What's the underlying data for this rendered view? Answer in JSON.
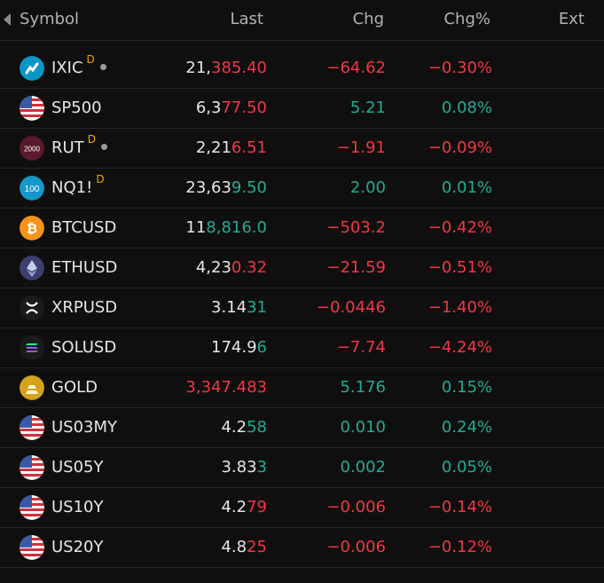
{
  "header": {
    "symbol": "Symbol",
    "last": "Last",
    "chg": "Chg",
    "chgp": "Chg%",
    "ext": "Ext"
  },
  "colors": {
    "red": "#f23645",
    "green": "#22ab94",
    "neutral": "#e6e6e6",
    "flag_d": "#f7a600"
  },
  "rows": [
    {
      "symbol": "IXIC",
      "flag": "D",
      "dot": true,
      "icon": "nasdaq-icon",
      "last_a": "21,",
      "last_b": "385.40",
      "last_b_color": "red",
      "chg": "−64.62",
      "chgp": "−0.30%",
      "dir": "red"
    },
    {
      "symbol": "SP500",
      "flag": "",
      "dot": false,
      "icon": "us-flag-icon",
      "last_a": "6,3",
      "last_b": "77.50",
      "last_b_color": "red",
      "chg": "5.21",
      "chgp": "0.08%",
      "dir": "green"
    },
    {
      "symbol": "RUT",
      "flag": "D",
      "dot": true,
      "icon": "russell-2000-icon",
      "icon_text": "2000",
      "last_a": "2,21",
      "last_b": "6.51",
      "last_b_color": "red",
      "chg": "−1.91",
      "chgp": "−0.09%",
      "dir": "red"
    },
    {
      "symbol": "NQ1!",
      "flag": "D",
      "dot": false,
      "icon": "nasdaq-100-icon",
      "icon_text": "100",
      "last_a": "23,63",
      "last_b": "9.50",
      "last_b_color": "green",
      "chg": "2.00",
      "chgp": "0.01%",
      "dir": "green"
    },
    {
      "symbol": "BTCUSD",
      "flag": "",
      "dot": false,
      "icon": "bitcoin-icon",
      "last_a": "11",
      "last_b": "8,816.0",
      "last_b_color": "green",
      "chg": "−503.2",
      "chgp": "−0.42%",
      "dir": "red"
    },
    {
      "symbol": "ETHUSD",
      "flag": "",
      "dot": false,
      "icon": "ethereum-icon",
      "last_a": "4,23",
      "last_b": "0.32",
      "last_b_color": "red",
      "chg": "−21.59",
      "chgp": "−0.51%",
      "dir": "red"
    },
    {
      "symbol": "XRPUSD",
      "flag": "",
      "dot": false,
      "icon": "xrp-icon",
      "last_a": "3.14",
      "last_b": "31",
      "last_b_color": "green",
      "chg": "−0.0446",
      "chgp": "−1.40%",
      "dir": "red"
    },
    {
      "symbol": "SOLUSD",
      "flag": "",
      "dot": false,
      "icon": "solana-icon",
      "last_a": "174.9",
      "last_b": "6",
      "last_b_color": "green",
      "chg": "−7.74",
      "chgp": "−4.24%",
      "dir": "red"
    },
    {
      "symbol": "GOLD",
      "flag": "",
      "dot": false,
      "icon": "gold-bars-icon",
      "last_a": "",
      "last_b": "3,347.483",
      "last_b_color": "red",
      "chg": "5.176",
      "chgp": "0.15%",
      "dir": "green"
    },
    {
      "symbol": "US03MY",
      "flag": "",
      "dot": false,
      "icon": "us-flag-icon",
      "last_a": "4.2",
      "last_b": "58",
      "last_b_color": "green",
      "chg": "0.010",
      "chgp": "0.24%",
      "dir": "green"
    },
    {
      "symbol": "US05Y",
      "flag": "",
      "dot": false,
      "icon": "us-flag-icon",
      "last_a": "3.83",
      "last_b": "3",
      "last_b_color": "green",
      "chg": "0.002",
      "chgp": "0.05%",
      "dir": "green"
    },
    {
      "symbol": "US10Y",
      "flag": "",
      "dot": false,
      "icon": "us-flag-icon",
      "last_a": "4.2",
      "last_b": "79",
      "last_b_color": "red",
      "chg": "−0.006",
      "chgp": "−0.14%",
      "dir": "red"
    },
    {
      "symbol": "US20Y",
      "flag": "",
      "dot": false,
      "icon": "us-flag-icon",
      "last_a": "4.8",
      "last_b": "25",
      "last_b_color": "red",
      "chg": "−0.006",
      "chgp": "−0.12%",
      "dir": "red"
    }
  ]
}
